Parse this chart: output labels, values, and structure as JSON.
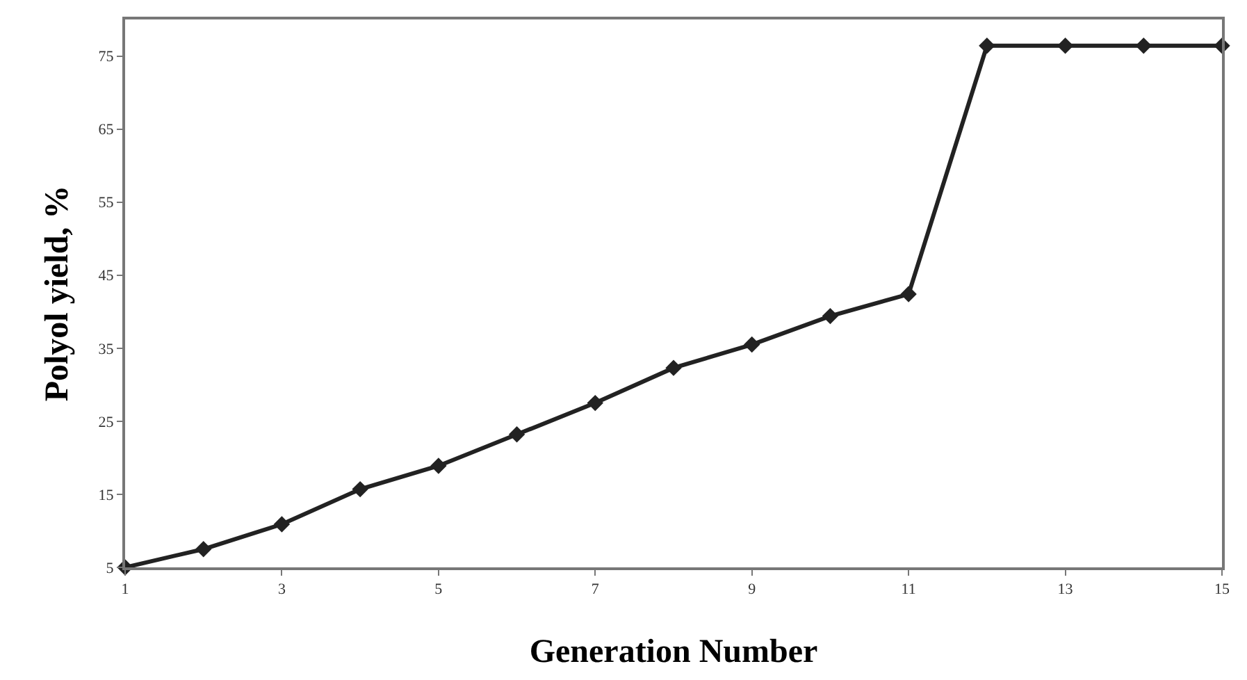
{
  "chart_data": {
    "type": "line",
    "xlabel": "Generation Number",
    "ylabel": "Polyol yield, %",
    "x": [
      1,
      2,
      3,
      4,
      5,
      6,
      7,
      8,
      9,
      10,
      11,
      12,
      13,
      14,
      15
    ],
    "series": [
      {
        "color": "#222222",
        "values": [
          5,
          7.5,
          10.9,
          15.7,
          18.9,
          23.2,
          27.5,
          32.3,
          35.5,
          39.4,
          42.4,
          76.4,
          76.4,
          76.4,
          76.4
        ]
      }
    ],
    "xlim": [
      1,
      15
    ],
    "xticks": [
      1,
      3,
      5,
      7,
      9,
      11,
      13,
      15
    ],
    "ylim": [
      5,
      80
    ],
    "yticks": [
      5,
      15,
      25,
      35,
      45,
      55,
      65,
      75
    ],
    "legend": false,
    "marker": "diamond",
    "line_style": "solid"
  }
}
